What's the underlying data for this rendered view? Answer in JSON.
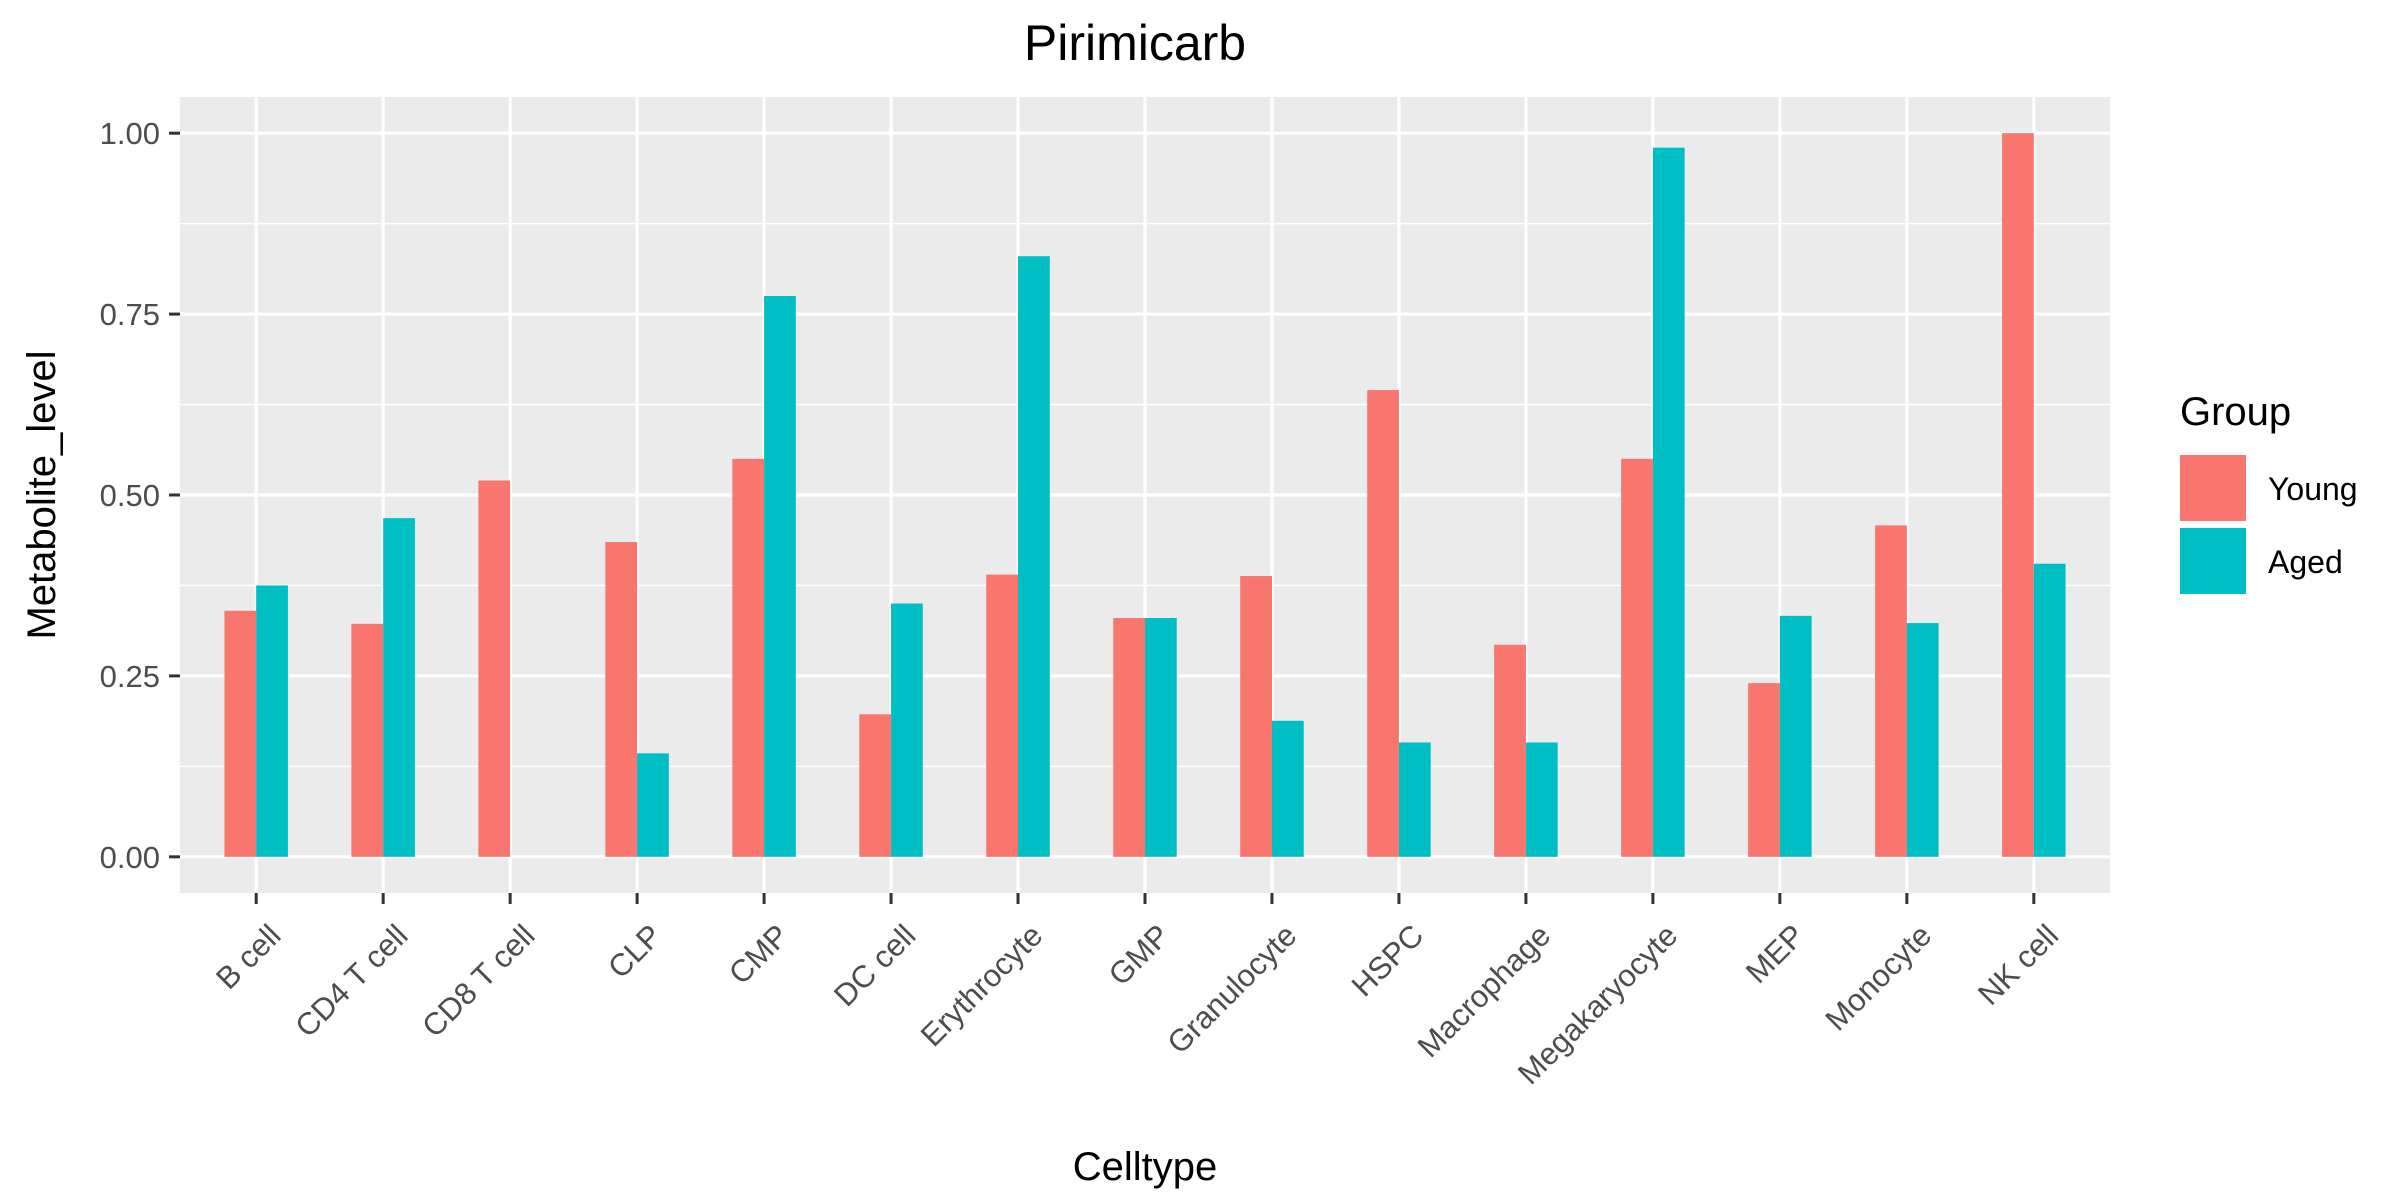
{
  "chart_data": {
    "type": "bar",
    "title": "Pirimicarb",
    "xlabel": "Celltype",
    "ylabel": "Metabolite_level",
    "ylim": [
      -0.05,
      1.05
    ],
    "yticks": [
      0.0,
      0.25,
      0.5,
      0.75,
      1.0
    ],
    "ytick_labels": [
      "0.00",
      "0.25",
      "0.50",
      "0.75",
      "1.00"
    ],
    "grid": true,
    "legend": {
      "title": "Group",
      "position": "right"
    },
    "categories": [
      "B cell",
      "CD4 T cell",
      "CD8 T cell",
      "CLP",
      "CMP",
      "DC cell",
      "Erythrocyte",
      "GMP",
      "Granulocyte",
      "HSPC",
      "Macrophage",
      "Megakaryocyte",
      "MEP",
      "Monocyte",
      "NK cell"
    ],
    "series": [
      {
        "name": "Young",
        "color": "#F8766D",
        "values": [
          0.34,
          0.322,
          0.52,
          0.435,
          0.55,
          0.197,
          0.39,
          0.33,
          0.388,
          0.645,
          0.293,
          0.55,
          0.24,
          0.458,
          1.0
        ]
      },
      {
        "name": "Aged",
        "color": "#00BFC4",
        "values": [
          0.375,
          0.468,
          null,
          0.143,
          0.775,
          0.35,
          0.83,
          0.33,
          0.188,
          0.158,
          0.158,
          0.98,
          0.333,
          0.323,
          0.405
        ]
      }
    ]
  },
  "colors": {
    "panel_background": "#EBEBEB",
    "grid": "#FFFFFF",
    "tick": "#333333"
  }
}
